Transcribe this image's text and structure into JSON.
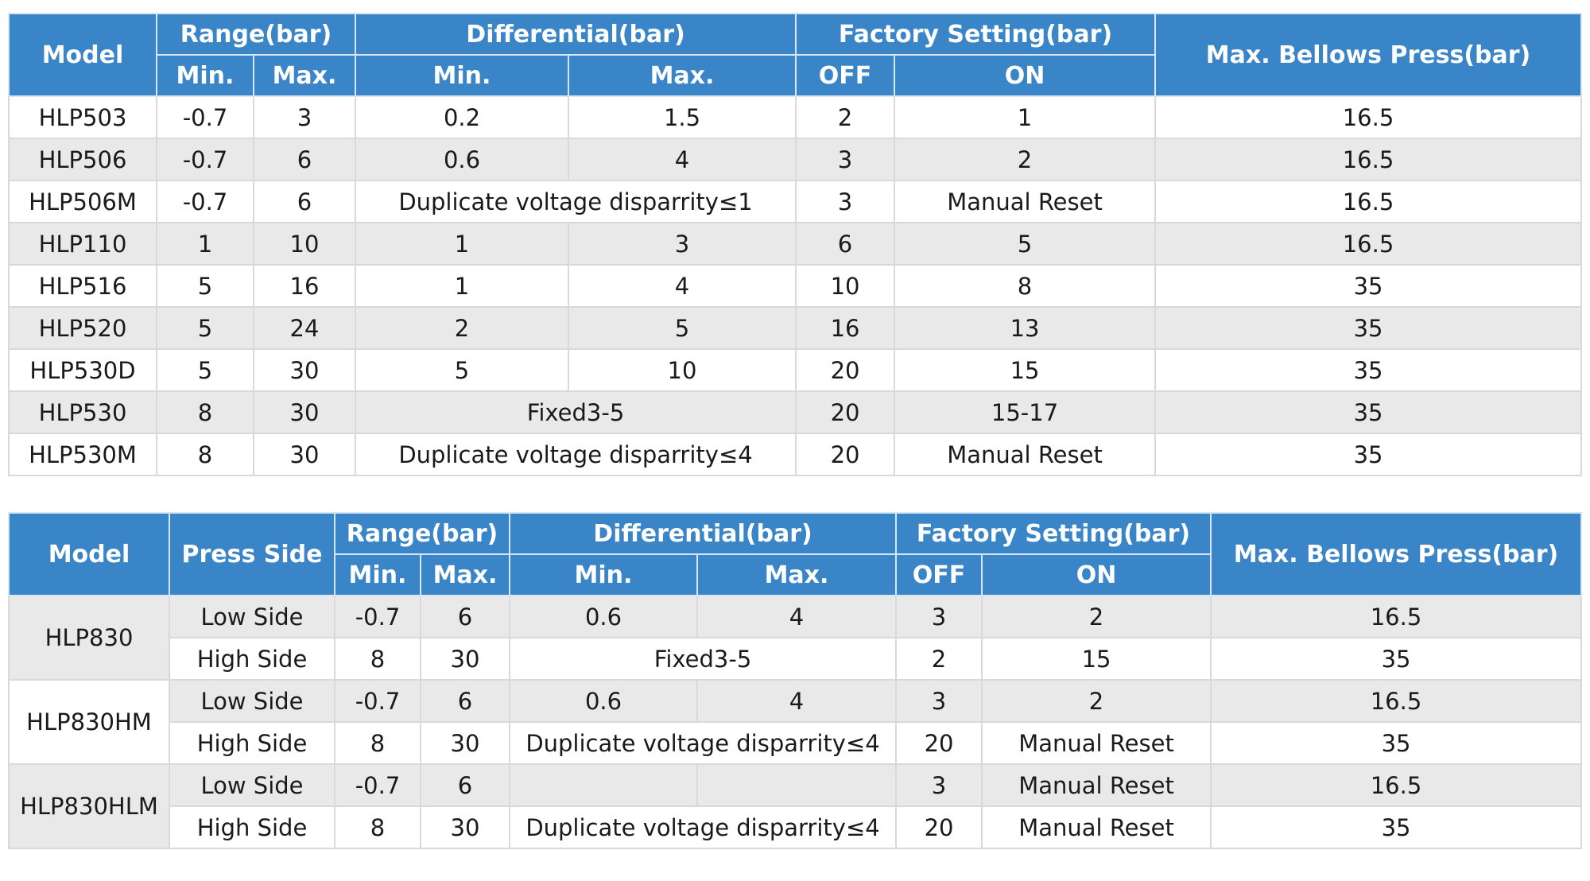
{
  "table1": {
    "headers": {
      "model": "Model",
      "range": "Range(bar)",
      "differential": "Differential(bar)",
      "factory": "Factory Setting(bar)",
      "bellows": "Max. Bellows Press(bar)",
      "min": "Min.",
      "max": "Max.",
      "off": "OFF",
      "on": "ON"
    },
    "rows": [
      {
        "model": "HLP503",
        "range_min": "-0.7",
        "range_max": "3",
        "diff_min": "0.2",
        "diff_max": "1.5",
        "off": "2",
        "on": "1",
        "bellows": "16.5"
      },
      {
        "model": "HLP506",
        "range_min": "-0.7",
        "range_max": "6",
        "diff_min": "0.6",
        "diff_max": "4",
        "off": "3",
        "on": "2",
        "bellows": "16.5"
      },
      {
        "model": "HLP506M",
        "range_min": "-0.7",
        "range_max": "6",
        "diff": "Duplicate voltage disparrity≤1",
        "off": "3",
        "on": "Manual Reset",
        "bellows": "16.5"
      },
      {
        "model": "HLP110",
        "range_min": "1",
        "range_max": "10",
        "diff_min": "1",
        "diff_max": "3",
        "off": "6",
        "on": "5",
        "bellows": "16.5"
      },
      {
        "model": "HLP516",
        "range_min": "5",
        "range_max": "16",
        "diff_min": "1",
        "diff_max": "4",
        "off": "10",
        "on": "8",
        "bellows": "35"
      },
      {
        "model": "HLP520",
        "range_min": "5",
        "range_max": "24",
        "diff_min": "2",
        "diff_max": "5",
        "off": "16",
        "on": "13",
        "bellows": "35"
      },
      {
        "model": "HLP530D",
        "range_min": "5",
        "range_max": "30",
        "diff_min": "5",
        "diff_max": "10",
        "off": "20",
        "on": "15",
        "bellows": "35"
      },
      {
        "model": "HLP530",
        "range_min": "8",
        "range_max": "30",
        "diff": "Fixed3-5",
        "off": "20",
        "on": "15-17",
        "bellows": "35"
      },
      {
        "model": "HLP530M",
        "range_min": "8",
        "range_max": "30",
        "diff": "Duplicate voltage disparrity≤4",
        "off": "20",
        "on": "Manual Reset",
        "bellows": "35"
      }
    ]
  },
  "table2": {
    "headers": {
      "model": "Model",
      "press_side": "Press Side",
      "range": "Range(bar)",
      "differential": "Differential(bar)",
      "factory": "Factory Setting(bar)",
      "bellows": "Max. Bellows Press(bar)",
      "min": "Min.",
      "max": "Max.",
      "off": "OFF",
      "on": "ON"
    },
    "groups": [
      {
        "model": "HLP830",
        "low": {
          "side": "Low Side",
          "range_min": "-0.7",
          "range_max": "6",
          "diff_min": "0.6",
          "diff_max": "4",
          "off": "3",
          "on": "2",
          "bellows": "16.5"
        },
        "high": {
          "side": "High Side",
          "range_min": "8",
          "range_max": "30",
          "diff": "Fixed3-5",
          "off": "2",
          "on": "15",
          "bellows": "35"
        }
      },
      {
        "model": "HLP830HM",
        "low": {
          "side": "Low Side",
          "range_min": "-0.7",
          "range_max": "6",
          "diff_min": "0.6",
          "diff_max": "4",
          "off": "3",
          "on": "2",
          "bellows": "16.5"
        },
        "high": {
          "side": "High Side",
          "range_min": "8",
          "range_max": "30",
          "diff": "Duplicate voltage disparrity≤4",
          "off": "20",
          "on": "Manual Reset",
          "bellows": "35"
        }
      },
      {
        "model": "HLP830HLM",
        "low": {
          "side": "Low Side",
          "range_min": "-0.7",
          "range_max": "6",
          "diff_min": "",
          "diff_max": "",
          "off": "3",
          "on": "Manual Reset",
          "bellows": "16.5"
        },
        "high": {
          "side": "High Side",
          "range_min": "8",
          "range_max": "30",
          "diff": "Duplicate voltage disparrity≤4",
          "off": "20",
          "on": "Manual Reset",
          "bellows": "35"
        }
      }
    ]
  }
}
